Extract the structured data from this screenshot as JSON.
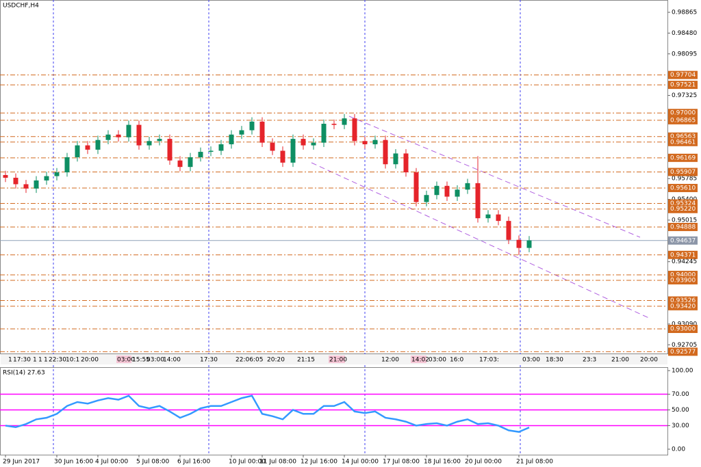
{
  "chart_data": [
    {
      "type": "candlestick",
      "title": "USDCHF,H4",
      "categories": [
        "29 Jun 2017",
        null,
        null,
        null,
        null,
        "30 Jun 16:00",
        null,
        null,
        null,
        "4 Jul 00:00",
        null,
        null,
        null,
        "5 Jul 08:00",
        null,
        null,
        null,
        "6 Jul 16:00",
        null,
        null,
        null,
        null,
        "10 Jul 00:00",
        null,
        null,
        "11 Jul 08:00",
        null,
        null,
        null,
        "12 Jul 16:00",
        null,
        null,
        null,
        "14 Jul 00:00",
        null,
        null,
        null,
        "17 Jul 08:00",
        null,
        null,
        null,
        "18 Jul 16:00",
        null,
        null,
        null,
        "20 Jul 00:00",
        null,
        null,
        null,
        null,
        "21 Jul 08:00",
        null
      ],
      "open": [
        0.9585,
        0.958,
        0.9568,
        0.956,
        0.9575,
        0.9583,
        0.959,
        0.9618,
        0.964,
        0.9632,
        0.965,
        0.966,
        0.9655,
        0.9678,
        0.964,
        0.9648,
        0.9652,
        0.9612,
        0.96,
        0.9618,
        0.9628,
        0.963,
        0.9642,
        0.966,
        0.9668,
        0.9684,
        0.9645,
        0.963,
        0.9608,
        0.9652,
        0.964,
        0.9645,
        0.968,
        0.9678,
        0.969,
        0.9648,
        0.9642,
        0.965,
        0.9605,
        0.9625,
        0.959,
        0.9535,
        0.9548,
        0.9565,
        0.9545,
        0.9558,
        0.957,
        0.9505,
        0.9512,
        0.95,
        0.9465,
        0.945
      ],
      "high": [
        0.9593,
        0.9588,
        0.9576,
        0.9583,
        0.9591,
        0.9598,
        0.9626,
        0.9648,
        0.9648,
        0.9658,
        0.9668,
        0.9668,
        0.9686,
        0.9686,
        0.9656,
        0.966,
        0.966,
        0.962,
        0.9626,
        0.9636,
        0.9638,
        0.965,
        0.9668,
        0.9676,
        0.9692,
        0.9692,
        0.9653,
        0.9638,
        0.966,
        0.966,
        0.9653,
        0.9688,
        0.9688,
        0.9698,
        0.9698,
        0.9656,
        0.9658,
        0.9658,
        0.9633,
        0.9633,
        0.9598,
        0.9556,
        0.9573,
        0.9573,
        0.9566,
        0.9578,
        0.962,
        0.952,
        0.952,
        0.9508,
        0.9473,
        0.9472
      ],
      "low": [
        0.9572,
        0.956,
        0.9552,
        0.9552,
        0.9567,
        0.9575,
        0.9582,
        0.961,
        0.9624,
        0.9624,
        0.9642,
        0.9647,
        0.9647,
        0.9632,
        0.9632,
        0.964,
        0.9604,
        0.9592,
        0.9592,
        0.961,
        0.962,
        0.9622,
        0.9634,
        0.9652,
        0.966,
        0.9637,
        0.9622,
        0.96,
        0.96,
        0.9632,
        0.9632,
        0.9637,
        0.967,
        0.967,
        0.964,
        0.9634,
        0.9634,
        0.9597,
        0.9597,
        0.9582,
        0.9527,
        0.9527,
        0.954,
        0.9537,
        0.9537,
        0.955,
        0.9497,
        0.9497,
        0.9492,
        0.9457,
        0.9437,
        0.9442
      ],
      "close": [
        0.958,
        0.9568,
        0.956,
        0.9575,
        0.9583,
        0.959,
        0.9618,
        0.964,
        0.9632,
        0.965,
        0.966,
        0.9655,
        0.9678,
        0.964,
        0.9648,
        0.9652,
        0.9612,
        0.96,
        0.9618,
        0.9628,
        0.963,
        0.9642,
        0.966,
        0.9668,
        0.9684,
        0.9645,
        0.963,
        0.9608,
        0.9652,
        0.964,
        0.9645,
        0.968,
        0.9678,
        0.969,
        0.9648,
        0.9642,
        0.965,
        0.9605,
        0.9625,
        0.959,
        0.9535,
        0.9548,
        0.9565,
        0.9545,
        0.9558,
        0.957,
        0.9505,
        0.9512,
        0.95,
        0.9465,
        0.945,
        0.9464
      ],
      "up_color": "#0e8f63",
      "down_color": "#e5242b",
      "ylim": [
        0.92544,
        0.99093
      ],
      "yticks": [
        0.98865,
        {
          "value": 0.9848,
          "label": "0.98480"
        },
        0.98095,
        0.97325,
        0.95785,
        {
          "value": 0.954,
          "label": "0.95400"
        },
        0.95015,
        0.94245,
        {
          "value": 0.9309,
          "label": "0.93090"
        },
        0.92705
      ],
      "levels": [
        0.97704,
        0.97521,
        {
          "value": 0.97,
          "label": "0.97000"
        },
        0.96865,
        0.96563,
        0.96461,
        0.96169,
        0.95907,
        {
          "value": 0.9561,
          "label": "0.95610"
        },
        0.95324,
        {
          "value": 0.9522,
          "label": "0.95220"
        },
        0.94888,
        0.94371,
        {
          "value": 0.94,
          "label": "0.94000"
        },
        {
          "value": 0.939,
          "label": "0.93900"
        },
        0.93526,
        {
          "value": 0.9342,
          "label": "0.93420"
        },
        {
          "value": 0.93,
          "label": "0.93000"
        },
        0.92577
      ],
      "level_color": "#d2691e",
      "last_price": 0.94637,
      "time_tags": [
        "1",
        "17:30",
        "1",
        "1",
        "1",
        "22:30",
        "10:1",
        "20:00",
        "03:00",
        "15:55",
        "03:00",
        "14:00",
        "17:30",
        "22:06:05",
        "20:20",
        "21:15",
        "21:00",
        "12:00",
        "14:02",
        "03:00",
        "16:0",
        "17:03:",
        "03:00",
        "18:30",
        "23:3",
        "21:00",
        "20:00"
      ]
    },
    {
      "type": "line",
      "title": "RSI(14) 27.63",
      "values": [
        30,
        28,
        32,
        38,
        40,
        45,
        55,
        60,
        58,
        62,
        65,
        63,
        68,
        55,
        52,
        55,
        48,
        40,
        45,
        52,
        55,
        55,
        60,
        65,
        68,
        45,
        42,
        38,
        50,
        45,
        45,
        55,
        55,
        60,
        48,
        46,
        48,
        40,
        38,
        35,
        30,
        32,
        33,
        30,
        35,
        38,
        32,
        33,
        30,
        24,
        22,
        27.63
      ],
      "color": "#3399ff",
      "ylim": [
        -7,
        103.5
      ],
      "yticks": [
        {
          "value": 100,
          "label": "100.00"
        },
        {
          "value": 70,
          "label": "70.00"
        },
        {
          "value": 50,
          "label": "50.00"
        },
        {
          "value": 30,
          "label": "30.00"
        },
        {
          "value": 0,
          "label": "0.00"
        }
      ],
      "levels": [
        70,
        50,
        30
      ],
      "level_color": "#ff00ff"
    }
  ]
}
